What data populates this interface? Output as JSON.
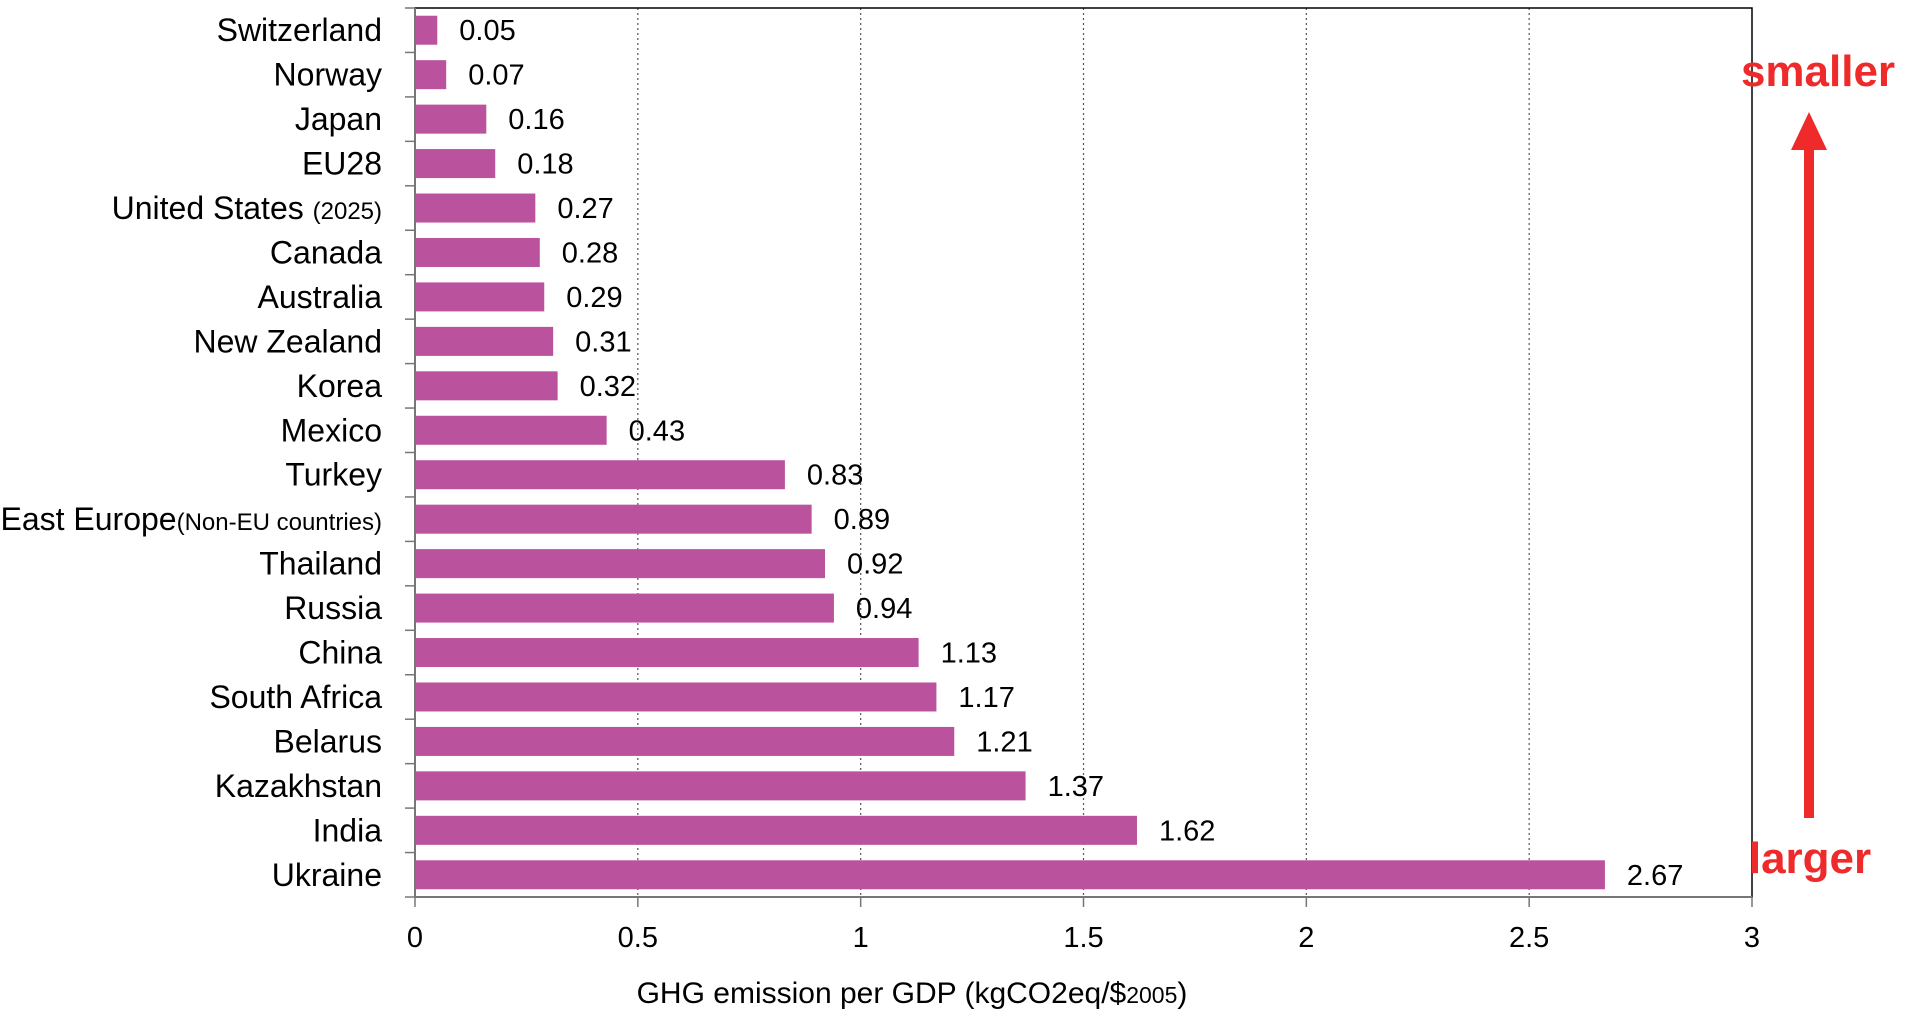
{
  "chart_data": {
    "type": "bar",
    "orientation": "horizontal",
    "categories": [
      {
        "main": "Switzerland",
        "sub": ""
      },
      {
        "main": "Norway",
        "sub": ""
      },
      {
        "main": "Japan",
        "sub": ""
      },
      {
        "main": "EU28",
        "sub": ""
      },
      {
        "main": "United States ",
        "sub": "(2025)"
      },
      {
        "main": "Canada",
        "sub": ""
      },
      {
        "main": "Australia",
        "sub": ""
      },
      {
        "main": "New Zealand",
        "sub": ""
      },
      {
        "main": "Korea",
        "sub": ""
      },
      {
        "main": "Mexico",
        "sub": ""
      },
      {
        "main": "Turkey",
        "sub": ""
      },
      {
        "main": "East Europe",
        "sub": "(Non-EU countries)"
      },
      {
        "main": "Thailand",
        "sub": ""
      },
      {
        "main": "Russia",
        "sub": ""
      },
      {
        "main": "China",
        "sub": ""
      },
      {
        "main": "South Africa",
        "sub": ""
      },
      {
        "main": "Belarus",
        "sub": ""
      },
      {
        "main": "Kazakhstan",
        "sub": ""
      },
      {
        "main": "India",
        "sub": ""
      },
      {
        "main": "Ukraine",
        "sub": ""
      }
    ],
    "values": [
      0.05,
      0.07,
      0.16,
      0.18,
      0.27,
      0.28,
      0.29,
      0.31,
      0.32,
      0.43,
      0.83,
      0.89,
      0.92,
      0.94,
      1.13,
      1.17,
      1.21,
      1.37,
      1.62,
      2.67
    ],
    "value_labels": [
      "0.05",
      "0.07",
      "0.16",
      "0.18",
      "0.27",
      "0.28",
      "0.29",
      "0.31",
      "0.32",
      "0.43",
      "0.83",
      "0.89",
      "0.92",
      "0.94",
      "1.13",
      "1.17",
      "1.21",
      "1.37",
      "1.62",
      "2.67"
    ],
    "xlim": [
      0,
      3
    ],
    "xticks": [
      0,
      0.5,
      1,
      1.5,
      2,
      2.5,
      3
    ],
    "xtick_labels": [
      "0",
      "0.5",
      "1",
      "1.5",
      "2",
      "2.5",
      "3"
    ],
    "xlabel": {
      "main": "GHG emission per GDP (kgCO2eq/$",
      "sub": "2005",
      "tail": ")"
    },
    "title": "",
    "grid": "vertical dotted",
    "bar_color": "#bb529e",
    "annotations": {
      "top": "smaller",
      "bottom": "larger",
      "color": "#ee2a2a",
      "arrow": "upward"
    }
  }
}
